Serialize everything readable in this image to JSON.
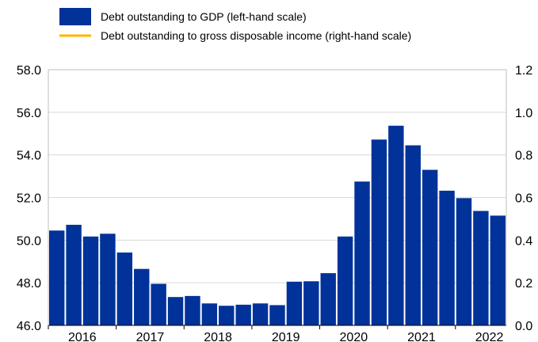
{
  "chart_data": {
    "type": "bar",
    "legend": {
      "placement": "top-left",
      "entries": [
        {
          "label": "Debt outstanding to GDP (left-hand scale)",
          "marker": "box",
          "color": "#003299"
        },
        {
          "label": "Debt outstanding to gross disposable income (right-hand scale)",
          "marker": "line",
          "color": "#FFB400"
        }
      ]
    },
    "x_labels": [
      "2016",
      "2017",
      "2018",
      "2019",
      "2020",
      "2021",
      "2022"
    ],
    "left_axis": {
      "ylim": [
        46.0,
        58.0
      ],
      "ticks": [
        "46.0",
        "48.0",
        "50.0",
        "52.0",
        "54.0",
        "56.0",
        "58.0"
      ]
    },
    "right_axis": {
      "ylim": [
        0.0,
        1.2
      ],
      "ticks": [
        "0.0",
        "0.2",
        "0.4",
        "0.6",
        "0.8",
        "1.0",
        "1.2"
      ]
    },
    "grid": "horizontal",
    "series": [
      {
        "name": "Debt outstanding to GDP (left-hand scale)",
        "color": "#003299",
        "values": [
          50.45,
          50.72,
          50.17,
          50.3,
          49.42,
          48.65,
          47.95,
          47.33,
          47.38,
          47.03,
          46.92,
          46.97,
          47.03,
          46.95,
          48.05,
          48.07,
          48.45,
          50.17,
          52.75,
          54.72,
          55.37,
          54.45,
          53.3,
          52.32,
          51.97,
          51.37,
          51.15
        ]
      },
      {
        "name": "Debt outstanding to gross disposable income (right-hand scale)",
        "color": "#FFB400",
        "values": []
      }
    ]
  }
}
